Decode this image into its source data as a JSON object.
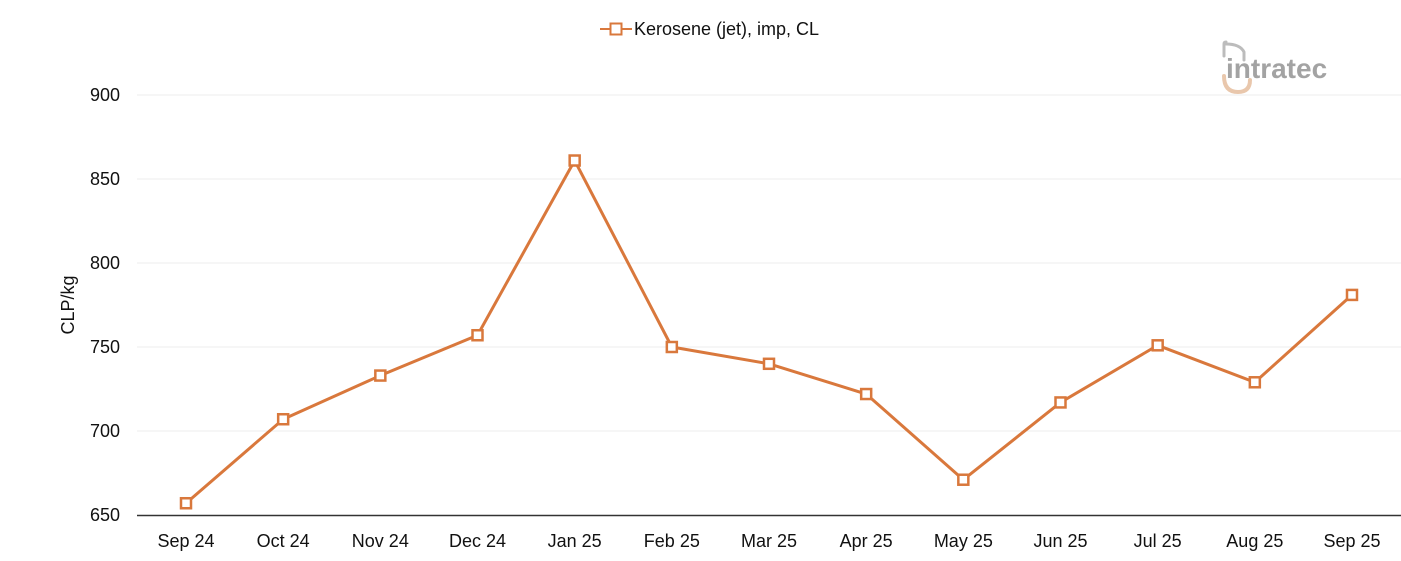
{
  "chart_data": {
    "type": "line",
    "title": "",
    "xlabel": "",
    "ylabel": "CLP/kg",
    "categories": [
      "Sep 24",
      "Oct 24",
      "Nov 24",
      "Dec 24",
      "Jan 25",
      "Feb 25",
      "Mar 25",
      "Apr 25",
      "May 25",
      "Jun 25",
      "Jul 25",
      "Aug 25",
      "Sep 25"
    ],
    "series": [
      {
        "name": "Kerosene (jet), imp, CL",
        "values": [
          657,
          707,
          733,
          757,
          861,
          750,
          740,
          722,
          671,
          717,
          751,
          729,
          781
        ],
        "color": "#d9783c",
        "marker": "square-outline"
      }
    ],
    "ylim": [
      650,
      900
    ],
    "yticks": [
      650,
      700,
      750,
      800,
      850,
      900
    ],
    "grid": true,
    "legend_position": "top-center"
  },
  "watermark": {
    "text": "intratec",
    "icon": "intratec-logo-icon"
  }
}
